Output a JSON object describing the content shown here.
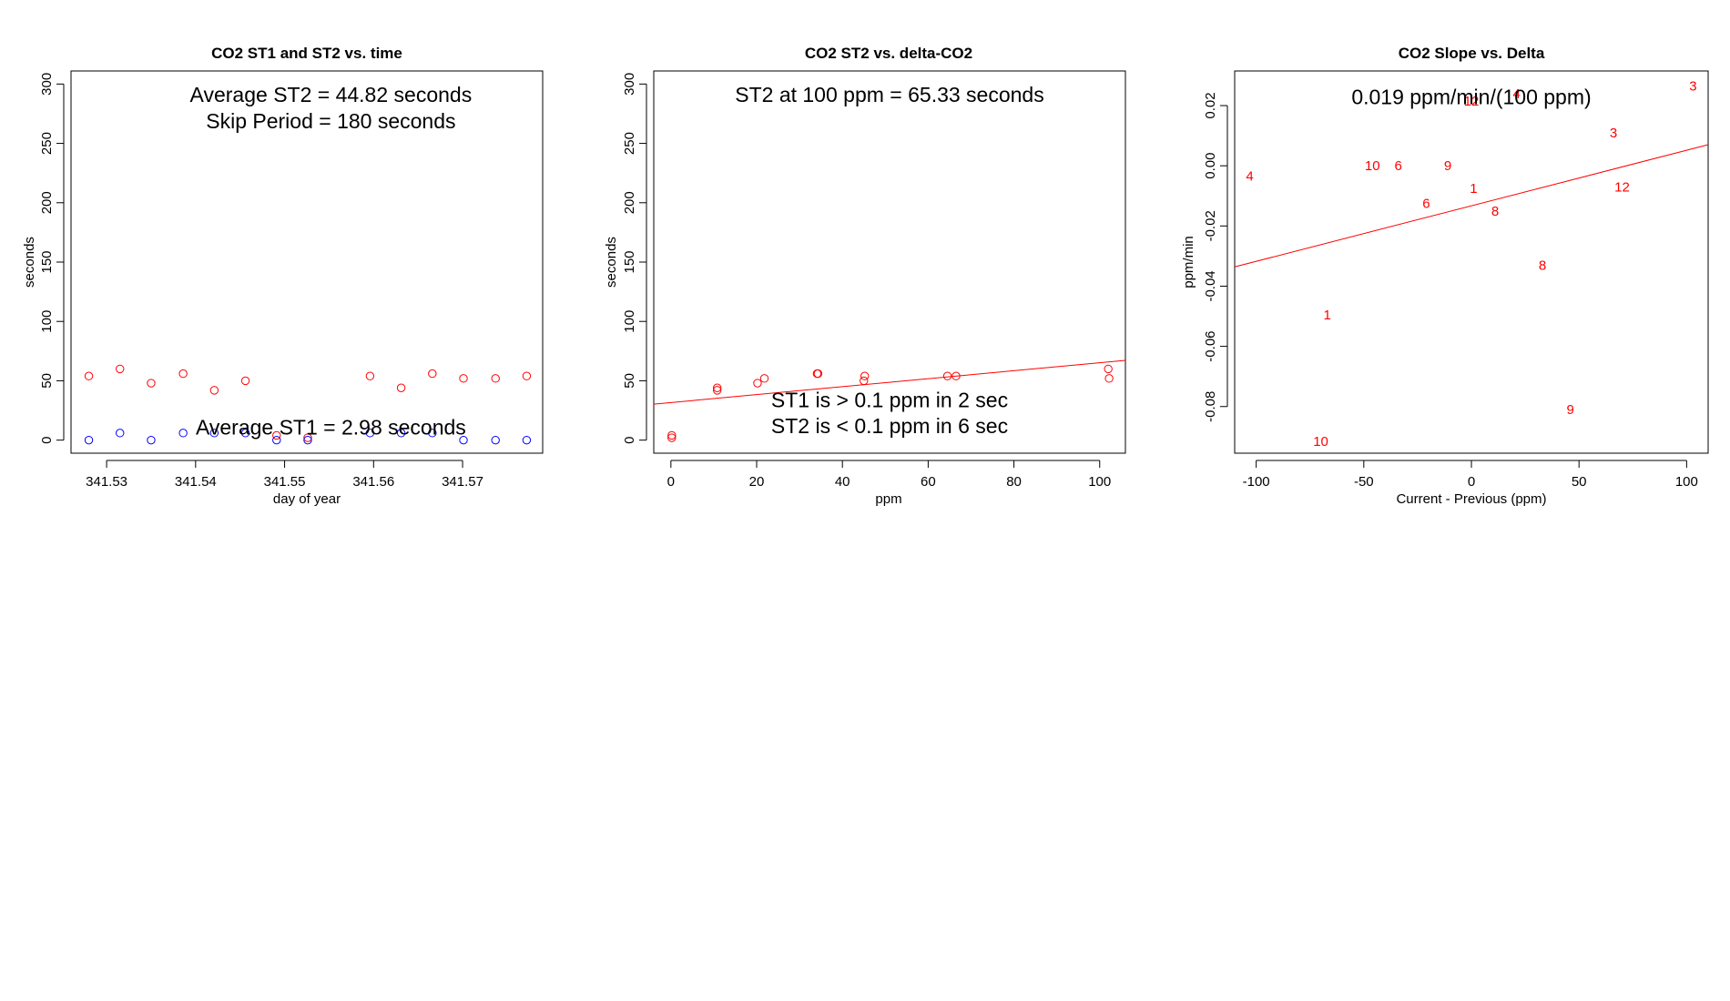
{
  "colors": {
    "st2": "#ff0000",
    "st1": "#0000ff",
    "axis": "#000000",
    "background": "#ffffff"
  },
  "chart_data": [
    {
      "type": "scatter",
      "title": "CO2 ST1 and ST2 vs. time",
      "xlabel": "day of year",
      "ylabel": "seconds",
      "xlim": [
        341.526,
        341.579
      ],
      "ylim": [
        -11,
        311
      ],
      "xticks": [
        341.53,
        341.54,
        341.55,
        341.56,
        341.57
      ],
      "xtick_labels": [
        "341.53",
        "341.54",
        "341.55",
        "341.56",
        "341.57"
      ],
      "yticks": [
        0,
        50,
        100,
        150,
        200,
        250,
        300
      ],
      "ytick_labels": [
        "0",
        "50",
        "100",
        "150",
        "200",
        "250",
        "300"
      ],
      "grid": false,
      "series": [
        {
          "color": "#ff0000",
          "x": [
            341.528,
            341.5315,
            341.535,
            341.5386,
            341.5421,
            341.5456,
            341.5491,
            341.5526,
            341.5596,
            341.5631,
            341.5666,
            341.5701,
            341.5737,
            341.5772
          ],
          "y": [
            54,
            60,
            48,
            56,
            42,
            50,
            4,
            2,
            54,
            44,
            56,
            52,
            52,
            54
          ]
        },
        {
          "color": "#0000ff",
          "x": [
            341.528,
            341.5315,
            341.535,
            341.5386,
            341.5421,
            341.5456,
            341.5491,
            341.5526,
            341.5596,
            341.5631,
            341.5666,
            341.5701,
            341.5737,
            341.5772
          ],
          "y": [
            0,
            6,
            0,
            6,
            6,
            6,
            0,
            0,
            6,
            6,
            6,
            0,
            0,
            0
          ]
        }
      ],
      "annotations": [
        {
          "text": "Average ST2 =  44.82  seconds",
          "x": 341.5552,
          "y": 291
        },
        {
          "text": "Skip Period =  180  seconds",
          "x": 341.5552,
          "y": 269
        },
        {
          "text": "Average ST1 =  2.98  seconds",
          "x": 341.5552,
          "y": 11
        }
      ]
    },
    {
      "type": "scatter",
      "title": "CO2 ST2 vs. delta-CO2",
      "xlabel": "ppm",
      "ylabel": "seconds",
      "xlim": [
        -4,
        106
      ],
      "ylim": [
        -11,
        311
      ],
      "xticks": [
        0,
        20,
        40,
        60,
        80,
        100
      ],
      "xtick_labels": [
        "0",
        "20",
        "40",
        "60",
        "80",
        "100"
      ],
      "yticks": [
        0,
        50,
        100,
        150,
        200,
        250,
        300
      ],
      "ytick_labels": [
        "0",
        "50",
        "100",
        "150",
        "200",
        "250",
        "300"
      ],
      "grid": false,
      "series": [
        {
          "color": "#ff0000",
          "x": [
            0.2,
            0.2,
            10.8,
            10.8,
            20.2,
            21.8,
            34.1,
            34.3,
            45.0,
            45.2,
            64.5,
            66.5,
            102.0,
            102.2
          ],
          "y": [
            2,
            4,
            42,
            44,
            48,
            52,
            56,
            56,
            50,
            54,
            54,
            54,
            60,
            52
          ]
        }
      ],
      "fit_line": {
        "color": "#ff0000",
        "x": [
          -4,
          106
        ],
        "y": [
          30.3,
          67.2
        ]
      },
      "annotations": [
        {
          "text": "ST2 at 100 ppm =  65.33  seconds",
          "x": 51,
          "y": 291
        },
        {
          "text": "ST1 is > 0.1 ppm in 2 sec",
          "x": 51,
          "y": 34
        },
        {
          "text": "ST2 is < 0.1 ppm in 6 sec",
          "x": 51,
          "y": 12
        }
      ]
    },
    {
      "type": "scatter",
      "title": "CO2 Slope vs. Delta",
      "xlabel": "Current - Previous (ppm)",
      "ylabel": "ppm/min",
      "xlim": [
        -110,
        110
      ],
      "ylim": [
        -0.0955,
        0.0315
      ],
      "xticks": [
        -100,
        -50,
        0,
        50,
        100
      ],
      "xtick_labels": [
        "-100",
        "-50",
        "0",
        "50",
        "100"
      ],
      "yticks": [
        -0.08,
        -0.06,
        -0.04,
        -0.02,
        0.0,
        0.02
      ],
      "ytick_labels": [
        "-0.08",
        "-0.06",
        "-0.04",
        "-0.02",
        "0.00",
        "0.02"
      ],
      "grid": false,
      "series": [
        {
          "color": "#ff0000",
          "marker": "text",
          "x": [
            -103,
            -46,
            -34,
            -11,
            1,
            -21,
            11,
            21,
            0,
            66,
            70,
            33,
            -67,
            46,
            -70,
            103
          ],
          "y": [
            -0.0035,
            0.0,
            0.0,
            0.0,
            -0.0075,
            -0.0125,
            -0.015,
            0.024,
            0.0215,
            0.011,
            -0.007,
            -0.033,
            -0.0495,
            -0.081,
            -0.0915,
            0.0265
          ],
          "labels": [
            "4",
            "10",
            "6",
            "9",
            "1",
            "6",
            "8",
            "4",
            "12",
            "3",
            "12",
            "8",
            "1",
            "9",
            "10",
            "3"
          ]
        }
      ],
      "fit_line": {
        "color": "#ff0000",
        "x": [
          -110,
          110
        ],
        "y": [
          -0.0336,
          0.007
        ]
      },
      "annotations": [
        {
          "text": "0.019  ppm/min/(100 ppm)",
          "x": 0,
          "y": 0.0229
        }
      ]
    }
  ]
}
